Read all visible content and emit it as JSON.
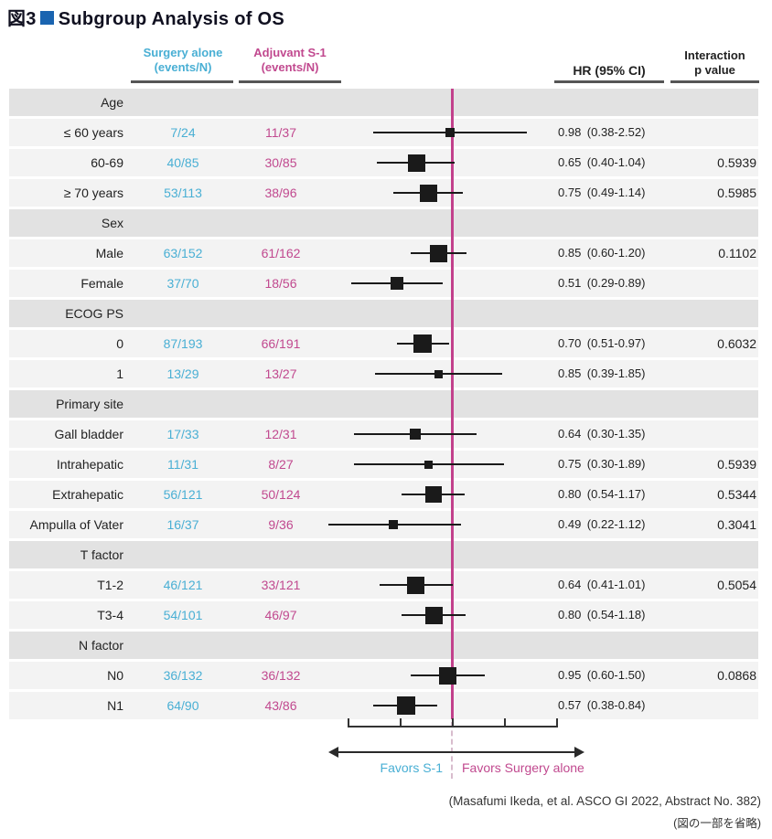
{
  "title": {
    "figure_label": "図3",
    "text": "Subgroup Analysis of OS"
  },
  "header": {
    "surgery_col": {
      "title": "Surgery alone",
      "subtitle": "(events/N)"
    },
    "adjuvant_col": {
      "title": "Adjuvant S-1",
      "subtitle": "(events/N)"
    },
    "hr_col": "HR  (95% CI)",
    "interaction_col": {
      "line1": "Interaction",
      "line2": "p value"
    }
  },
  "colors": {
    "surgery": "#49AFD4",
    "adjuvant": "#C1498F",
    "reference_line": "#C2418C",
    "marker": "#1A1A1A",
    "section_band": "#E2E2E2",
    "row_band": "#F3F3F3",
    "title_square": "#1A64B0"
  },
  "axis": {
    "favors_left": "Favors S-1",
    "favors_right": "Favors Surgery alone",
    "reference_value": 1.0,
    "tick_count": 5
  },
  "footer": {
    "citation": "(Masafumi Ikeda, et al. ASCO GI 2022, Abstract No. 382)",
    "note": "(図の一部を省略)"
  },
  "chart_data": {
    "type": "scatter",
    "subtype": "forest-plot",
    "title": "図3 Subgroup Analysis of OS",
    "x_scale": "log",
    "reference_line_x": 1.0,
    "xlim": [
      0.25,
      4
    ],
    "legend": [
      "Surgery alone (events/N)",
      "Adjuvant S-1 (events/N)"
    ],
    "annotations": {
      "left_of_reference": "Favors S-1",
      "right_of_reference": "Favors Surgery alone"
    },
    "groups": [
      {
        "name": "Age",
        "rows": [
          {
            "label": "≤ 60 years",
            "surgery": "7/24",
            "adjuvant": "11/37",
            "hr": 0.98,
            "ci": [
              0.38,
              2.52
            ],
            "p": "",
            "marker_size": 10
          },
          {
            "label": "60-69",
            "surgery": "40/85",
            "adjuvant": "30/85",
            "hr": 0.65,
            "ci": [
              0.4,
              1.04
            ],
            "p": "0.5939",
            "marker_size": 19
          },
          {
            "label": "≥ 70 years",
            "surgery": "53/113",
            "adjuvant": "38/96",
            "hr": 0.75,
            "ci": [
              0.49,
              1.14
            ],
            "p": "0.5985",
            "marker_size": 19
          }
        ]
      },
      {
        "name": "Sex",
        "rows": [
          {
            "label": "Male",
            "surgery": "63/152",
            "adjuvant": "61/162",
            "hr": 0.85,
            "ci": [
              0.6,
              1.2
            ],
            "p": "0.1102",
            "marker_size": 19
          },
          {
            "label": "Female",
            "surgery": "37/70",
            "adjuvant": "18/56",
            "hr": 0.51,
            "ci": [
              0.29,
              0.89
            ],
            "p": "",
            "marker_size": 14
          }
        ]
      },
      {
        "name": "ECOG PS",
        "rows": [
          {
            "label": "0",
            "surgery": "87/193",
            "adjuvant": "66/191",
            "hr": 0.7,
            "ci": [
              0.51,
              0.97
            ],
            "p": "0.6032",
            "marker_size": 20
          },
          {
            "label": "1",
            "surgery": "13/29",
            "adjuvant": "13/27",
            "hr": 0.85,
            "ci": [
              0.39,
              1.85
            ],
            "p": "",
            "marker_size": 9
          }
        ]
      },
      {
        "name": "Primary site",
        "rows": [
          {
            "label": "Gall bladder",
            "surgery": "17/33",
            "adjuvant": "12/31",
            "hr": 0.64,
            "ci": [
              0.3,
              1.35
            ],
            "p": "",
            "marker_size": 12
          },
          {
            "label": "Intrahepatic",
            "surgery": "11/31",
            "adjuvant": "8/27",
            "hr": 0.75,
            "ci": [
              0.3,
              1.89
            ],
            "p": "0.5939",
            "marker_size": 9
          },
          {
            "label": "Extrahepatic",
            "surgery": "56/121",
            "adjuvant": "50/124",
            "hr": 0.8,
            "ci": [
              0.54,
              1.17
            ],
            "p": "0.5344",
            "marker_size": 18
          },
          {
            "label": "Ampulla of Vater",
            "surgery": "16/37",
            "adjuvant": "9/36",
            "hr": 0.49,
            "ci": [
              0.22,
              1.12
            ],
            "p": "0.3041",
            "marker_size": 10
          }
        ]
      },
      {
        "name": "T factor",
        "rows": [
          {
            "label": "T1-2",
            "surgery": "46/121",
            "adjuvant": "33/121",
            "hr": 0.64,
            "ci": [
              0.41,
              1.01
            ],
            "p": "0.5054",
            "marker_size": 19
          },
          {
            "label": "T3-4",
            "surgery": "54/101",
            "adjuvant": "46/97",
            "hr": 0.8,
            "ci": [
              0.54,
              1.18
            ],
            "p": "",
            "marker_size": 19
          }
        ]
      },
      {
        "name": "N factor",
        "rows": [
          {
            "label": "N0",
            "surgery": "36/132",
            "adjuvant": "36/132",
            "hr": 0.95,
            "ci": [
              0.6,
              1.5
            ],
            "p": "0.0868",
            "marker_size": 19
          },
          {
            "label": "N1",
            "surgery": "64/90",
            "adjuvant": "43/86",
            "hr": 0.57,
            "ci": [
              0.38,
              0.84
            ],
            "p": "",
            "marker_size": 20
          }
        ]
      }
    ]
  }
}
